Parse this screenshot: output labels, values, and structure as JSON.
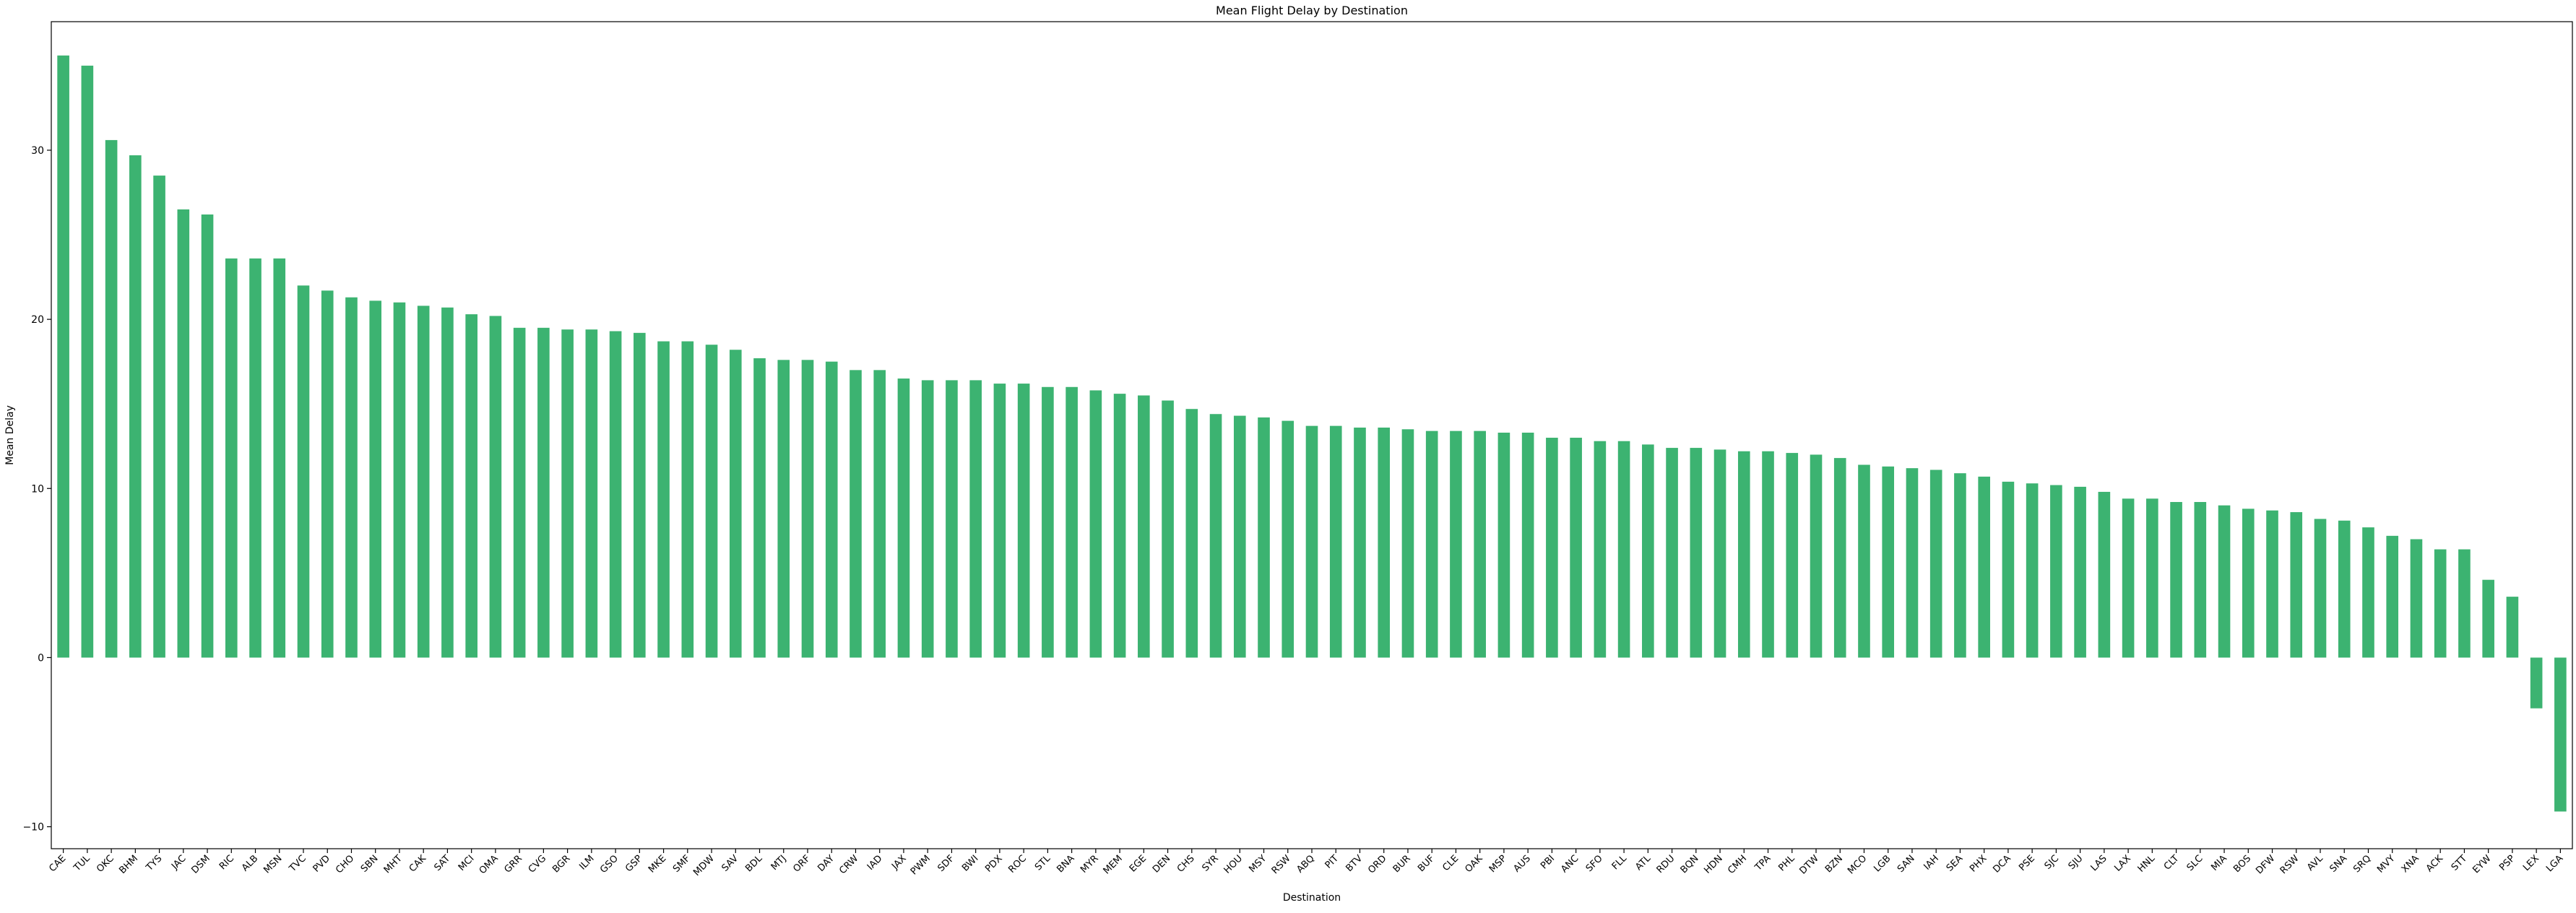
{
  "chart_data": {
    "type": "bar",
    "title": "Mean Flight Delay by Destination",
    "xlabel": "Destination",
    "ylabel": "Mean Delay",
    "ylim": [
      -11.3,
      37.6
    ],
    "yticks": [
      -10,
      0,
      10,
      20,
      30
    ],
    "grid": false,
    "legend": "none",
    "bar_color": "#3cb371",
    "categories": [
      "CAE",
      "TUL",
      "OKC",
      "BHM",
      "TYS",
      "JAC",
      "DSM",
      "RIC",
      "ALB",
      "MSN",
      "TVC",
      "PVD",
      "CHO",
      "SBN",
      "MHT",
      "CAK",
      "SAT",
      "MCI",
      "OMA",
      "GRR",
      "CVG",
      "BGR",
      "ILM",
      "GSO",
      "GSP",
      "MKE",
      "SMF",
      "MDW",
      "SAV",
      "BDL",
      "MTJ",
      "ORF",
      "DAY",
      "CRW",
      "IAD",
      "JAX",
      "PWM",
      "SDF",
      "BWI",
      "PDX",
      "ROC",
      "STL",
      "BNA",
      "MYR",
      "MEM",
      "EGE",
      "DEN",
      "CHS",
      "SYR",
      "HOU",
      "MSY",
      "RSW",
      "ABQ",
      "PIT",
      "BTV",
      "ORD",
      "BUR",
      "BUF",
      "CLE",
      "OAK",
      "MSP",
      "AUS",
      "PBI",
      "ANC",
      "SFO",
      "FLL",
      "ATL",
      "RDU",
      "BQN",
      "HDN",
      "CMH",
      "TPA",
      "PHL",
      "DTW",
      "BZN",
      "MCO",
      "LGB",
      "SAN",
      "IAH",
      "SEA",
      "PHX",
      "DCA",
      "PSE",
      "SJC",
      "SJU",
      "LAS",
      "LAX",
      "HNL",
      "CLT",
      "SLC",
      "MIA",
      "BOS",
      "DFW",
      "RSW",
      "AVL",
      "SNA",
      "SRQ",
      "MVY",
      "XNA",
      "ACK",
      "STT",
      "EYW",
      "PSP",
      "LEX",
      "LGA"
    ],
    "values": [
      35.6,
      35.0,
      30.6,
      29.7,
      28.5,
      26.5,
      26.2,
      23.6,
      23.6,
      23.6,
      22.0,
      21.7,
      21.3,
      21.1,
      21.0,
      20.8,
      20.7,
      20.3,
      20.2,
      19.5,
      19.5,
      19.4,
      19.4,
      19.3,
      19.2,
      18.7,
      18.7,
      18.5,
      18.2,
      17.7,
      17.6,
      17.6,
      17.5,
      17.0,
      17.0,
      16.5,
      16.4,
      16.4,
      16.4,
      16.2,
      16.2,
      16.0,
      16.0,
      15.8,
      15.6,
      15.5,
      15.2,
      14.7,
      14.4,
      14.3,
      14.2,
      14.0,
      13.7,
      13.7,
      13.6,
      13.6,
      13.5,
      13.4,
      13.4,
      13.4,
      13.3,
      13.3,
      13.0,
      13.0,
      12.8,
      12.8,
      12.6,
      12.4,
      12.4,
      12.3,
      12.2,
      12.2,
      12.1,
      12.0,
      11.8,
      11.4,
      11.3,
      11.2,
      11.1,
      10.9,
      10.7,
      10.4,
      10.3,
      10.2,
      10.1,
      9.8,
      9.4,
      9.4,
      9.2,
      9.2,
      9.0,
      8.8,
      8.7,
      8.6,
      8.2,
      8.1,
      7.7,
      7.2,
      7.0,
      6.4,
      6.4,
      4.6,
      3.6,
      -3.0,
      -9.1
    ]
  }
}
